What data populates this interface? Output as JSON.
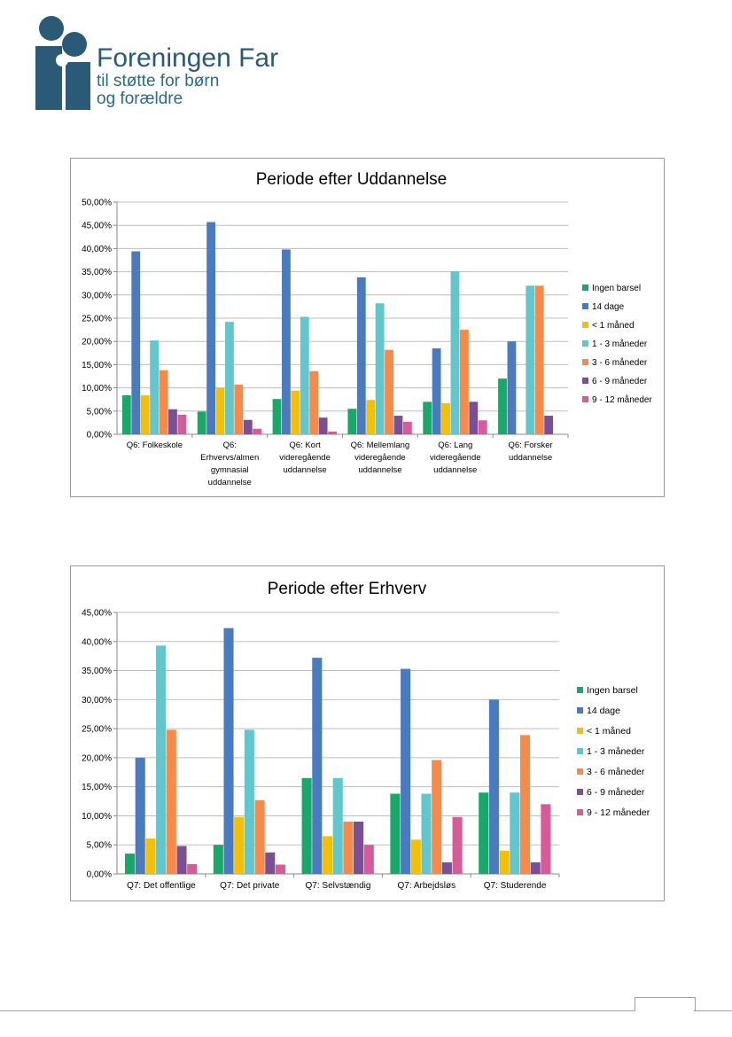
{
  "org": {
    "name": "Foreningen Far",
    "tagline_1": "til støtte for børn",
    "tagline_2": "og forældre"
  },
  "colors": {
    "series": [
      "#1aa86a",
      "#4a7bbf",
      "#f2bf0a",
      "#62c6cc",
      "#f68a4a",
      "#7a4f96",
      "#d65b99"
    ],
    "grid": "#bdbdbd",
    "logo": "#2a5a75"
  },
  "chart_data": [
    {
      "type": "bar",
      "title": "Periode efter Uddannelse",
      "categories": [
        [
          "Q6: Folkeskole"
        ],
        [
          "Q6:",
          "Erhvervs/almen",
          "gymnasial",
          "uddannelse"
        ],
        [
          "Q6: Kort",
          "videregående",
          "uddannelse"
        ],
        [
          "Q6: Mellemlang",
          "videregående",
          "uddannelse"
        ],
        [
          "Q6: Lang",
          "videregående",
          "uddannelse"
        ],
        [
          "Q6: Forsker",
          "uddannelse"
        ]
      ],
      "ylim": [
        0,
        50
      ],
      "yticks": [
        "0,00%",
        "5,00%",
        "10,00%",
        "15,00%",
        "20,00%",
        "25,00%",
        "30,00%",
        "35,00%",
        "40,00%",
        "45,00%",
        "50,00%"
      ],
      "grid": true,
      "legend": "right",
      "series": [
        {
          "name": "Ingen barsel",
          "values": [
            8.4,
            4.9,
            7.6,
            5.5,
            7.0,
            12.0
          ]
        },
        {
          "name": "14 dage",
          "values": [
            39.4,
            45.7,
            39.8,
            33.8,
            18.5,
            20.0
          ]
        },
        {
          "name": "< 1 måned",
          "values": [
            8.4,
            10.0,
            9.4,
            7.4,
            6.7,
            0.0
          ]
        },
        {
          "name": "1 - 3 måneder",
          "values": [
            20.2,
            24.2,
            25.3,
            28.2,
            35.1,
            32.0
          ]
        },
        {
          "name": "3 - 6 måneder",
          "values": [
            13.8,
            10.7,
            13.6,
            18.2,
            22.5,
            32.0
          ]
        },
        {
          "name": "6 - 9 måneder",
          "values": [
            5.4,
            3.1,
            3.6,
            4.0,
            7.0,
            4.0
          ]
        },
        {
          "name": "9 - 12 måneder",
          "values": [
            4.2,
            1.2,
            0.6,
            2.7,
            3.0,
            0.0
          ]
        }
      ]
    },
    {
      "type": "bar",
      "title": "Periode efter Erhverv",
      "categories": [
        [
          "Q7: Det offentlige"
        ],
        [
          "Q7: Det private"
        ],
        [
          "Q7: Selvstændig"
        ],
        [
          "Q7: Arbejdsløs"
        ],
        [
          "Q7: Studerende"
        ]
      ],
      "ylim": [
        0,
        45
      ],
      "yticks": [
        "0,00%",
        "5,00%",
        "10,00%",
        "15,00%",
        "20,00%",
        "25,00%",
        "30,00%",
        "35,00%",
        "40,00%",
        "45,00%"
      ],
      "grid": true,
      "legend": "right",
      "series": [
        {
          "name": "Ingen barsel",
          "values": [
            3.5,
            5.0,
            16.5,
            13.8,
            14.0
          ]
        },
        {
          "name": "14 dage",
          "values": [
            20.0,
            42.3,
            37.2,
            35.3,
            30.0
          ]
        },
        {
          "name": "< 1 måned",
          "values": [
            6.1,
            9.8,
            6.5,
            5.9,
            4.0
          ]
        },
        {
          "name": "1 - 3 måneder",
          "values": [
            39.3,
            24.8,
            16.5,
            13.8,
            14.0
          ]
        },
        {
          "name": "3 - 6 måneder",
          "values": [
            24.8,
            12.7,
            9.0,
            19.6,
            23.9
          ]
        },
        {
          "name": "6 - 9 måneder",
          "values": [
            4.8,
            3.7,
            9.0,
            2.0,
            2.0
          ]
        },
        {
          "name": "9 - 12 måneder",
          "values": [
            1.7,
            1.6,
            5.0,
            9.8,
            12.0
          ]
        }
      ]
    }
  ]
}
